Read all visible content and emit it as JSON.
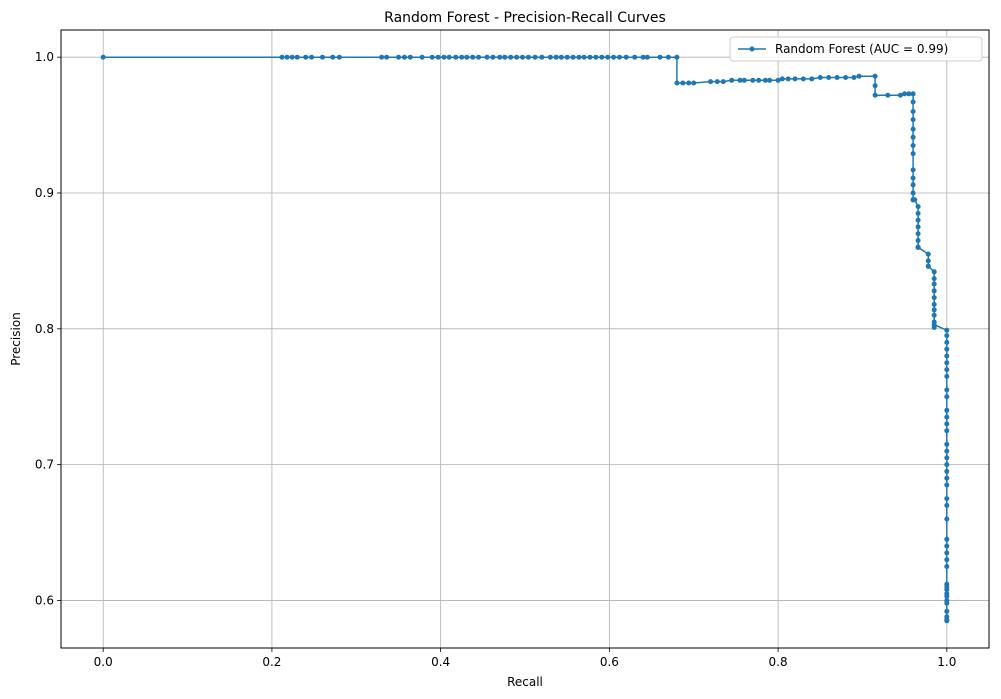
{
  "chart_data": {
    "type": "line",
    "title": "Random Forest - Precision-Recall Curves",
    "xlabel": "Recall",
    "ylabel": "Precision",
    "xlim": [
      -0.05,
      1.05
    ],
    "ylim": [
      0.565,
      1.02
    ],
    "xticks": [
      "0.0",
      "0.2",
      "0.4",
      "0.6",
      "0.8",
      "1.0"
    ],
    "yticks": [
      "0.6",
      "0.7",
      "0.8",
      "0.9",
      "1.0"
    ],
    "grid": true,
    "legend_position": "top-right",
    "series": [
      {
        "name": "Random Forest (AUC = 0.99)",
        "color": "#1f77b4",
        "marker": "circle",
        "x": [
          0.0,
          0.212,
          0.218,
          0.224,
          0.23,
          0.24,
          0.247,
          0.26,
          0.272,
          0.28,
          0.33,
          0.336,
          0.35,
          0.357,
          0.364,
          0.378,
          0.39,
          0.397,
          0.404,
          0.41,
          0.418,
          0.425,
          0.431,
          0.438,
          0.445,
          0.455,
          0.462,
          0.47,
          0.476,
          0.483,
          0.49,
          0.497,
          0.504,
          0.512,
          0.52,
          0.53,
          0.537,
          0.543,
          0.55,
          0.557,
          0.564,
          0.57,
          0.577,
          0.584,
          0.591,
          0.598,
          0.605,
          0.612,
          0.62,
          0.63,
          0.64,
          0.645,
          0.66,
          0.67,
          0.68,
          0.68,
          0.687,
          0.694,
          0.7,
          0.72,
          0.728,
          0.735,
          0.745,
          0.755,
          0.76,
          0.77,
          0.777,
          0.785,
          0.79,
          0.8,
          0.805,
          0.812,
          0.82,
          0.83,
          0.84,
          0.85,
          0.86,
          0.87,
          0.88,
          0.89,
          0.896,
          0.915,
          0.915,
          0.915,
          0.93,
          0.945,
          0.95,
          0.955,
          0.96,
          0.96,
          0.96,
          0.96,
          0.96,
          0.96,
          0.96,
          0.96,
          0.96,
          0.96,
          0.96,
          0.96,
          0.96,
          0.96,
          0.96,
          0.962,
          0.966,
          0.966,
          0.966,
          0.966,
          0.966,
          0.966,
          0.966,
          0.966,
          0.966,
          0.978,
          0.978,
          0.978,
          0.978,
          0.985,
          0.985,
          0.985,
          0.985,
          0.985,
          0.985,
          0.985,
          0.985,
          0.985,
          0.985,
          0.985,
          1.0,
          1.0,
          1.0,
          1.0,
          1.0,
          1.0,
          1.0,
          1.0,
          1.0,
          1.0,
          1.0,
          1.0,
          1.0,
          1.0,
          1.0,
          1.0,
          1.0,
          1.0,
          1.0,
          1.0,
          1.0,
          1.0,
          1.0,
          1.0,
          1.0,
          1.0,
          1.0,
          1.0,
          1.0,
          1.0,
          1.0,
          1.0,
          1.0,
          1.0,
          1.0,
          1.0,
          1.0,
          1.0,
          1.0,
          1.0
        ],
        "y": [
          1.0,
          1.0,
          1.0,
          1.0,
          1.0,
          1.0,
          1.0,
          1.0,
          1.0,
          1.0,
          1.0,
          1.0,
          1.0,
          1.0,
          1.0,
          1.0,
          1.0,
          1.0,
          1.0,
          1.0,
          1.0,
          1.0,
          1.0,
          1.0,
          1.0,
          1.0,
          1.0,
          1.0,
          1.0,
          1.0,
          1.0,
          1.0,
          1.0,
          1.0,
          1.0,
          1.0,
          1.0,
          1.0,
          1.0,
          1.0,
          1.0,
          1.0,
          1.0,
          1.0,
          1.0,
          1.0,
          1.0,
          1.0,
          1.0,
          1.0,
          1.0,
          1.0,
          1.0,
          1.0,
          1.0,
          0.981,
          0.981,
          0.981,
          0.981,
          0.982,
          0.982,
          0.982,
          0.983,
          0.983,
          0.983,
          0.983,
          0.983,
          0.983,
          0.983,
          0.983,
          0.984,
          0.984,
          0.984,
          0.984,
          0.984,
          0.985,
          0.985,
          0.985,
          0.985,
          0.985,
          0.986,
          0.986,
          0.979,
          0.972,
          0.972,
          0.972,
          0.973,
          0.973,
          0.973,
          0.967,
          0.96,
          0.954,
          0.947,
          0.941,
          0.935,
          0.929,
          0.917,
          0.911,
          0.906,
          0.9,
          0.895,
          0.895,
          0.895,
          0.895,
          0.89,
          0.885,
          0.88,
          0.875,
          0.87,
          0.865,
          0.86,
          0.86,
          0.86,
          0.855,
          0.85,
          0.846,
          0.846,
          0.842,
          0.837,
          0.833,
          0.828,
          0.823,
          0.818,
          0.814,
          0.81,
          0.805,
          0.801,
          0.803,
          0.799,
          0.795,
          0.79,
          0.785,
          0.78,
          0.775,
          0.77,
          0.765,
          0.755,
          0.75,
          0.74,
          0.735,
          0.73,
          0.725,
          0.715,
          0.71,
          0.705,
          0.7,
          0.695,
          0.69,
          0.685,
          0.675,
          0.67,
          0.66,
          0.645,
          0.64,
          0.635,
          0.63,
          0.625,
          0.612,
          0.608,
          0.603,
          0.598,
          0.592,
          0.588,
          0.585,
          0.6,
          0.605,
          0.61,
          0.586
        ]
      }
    ]
  }
}
